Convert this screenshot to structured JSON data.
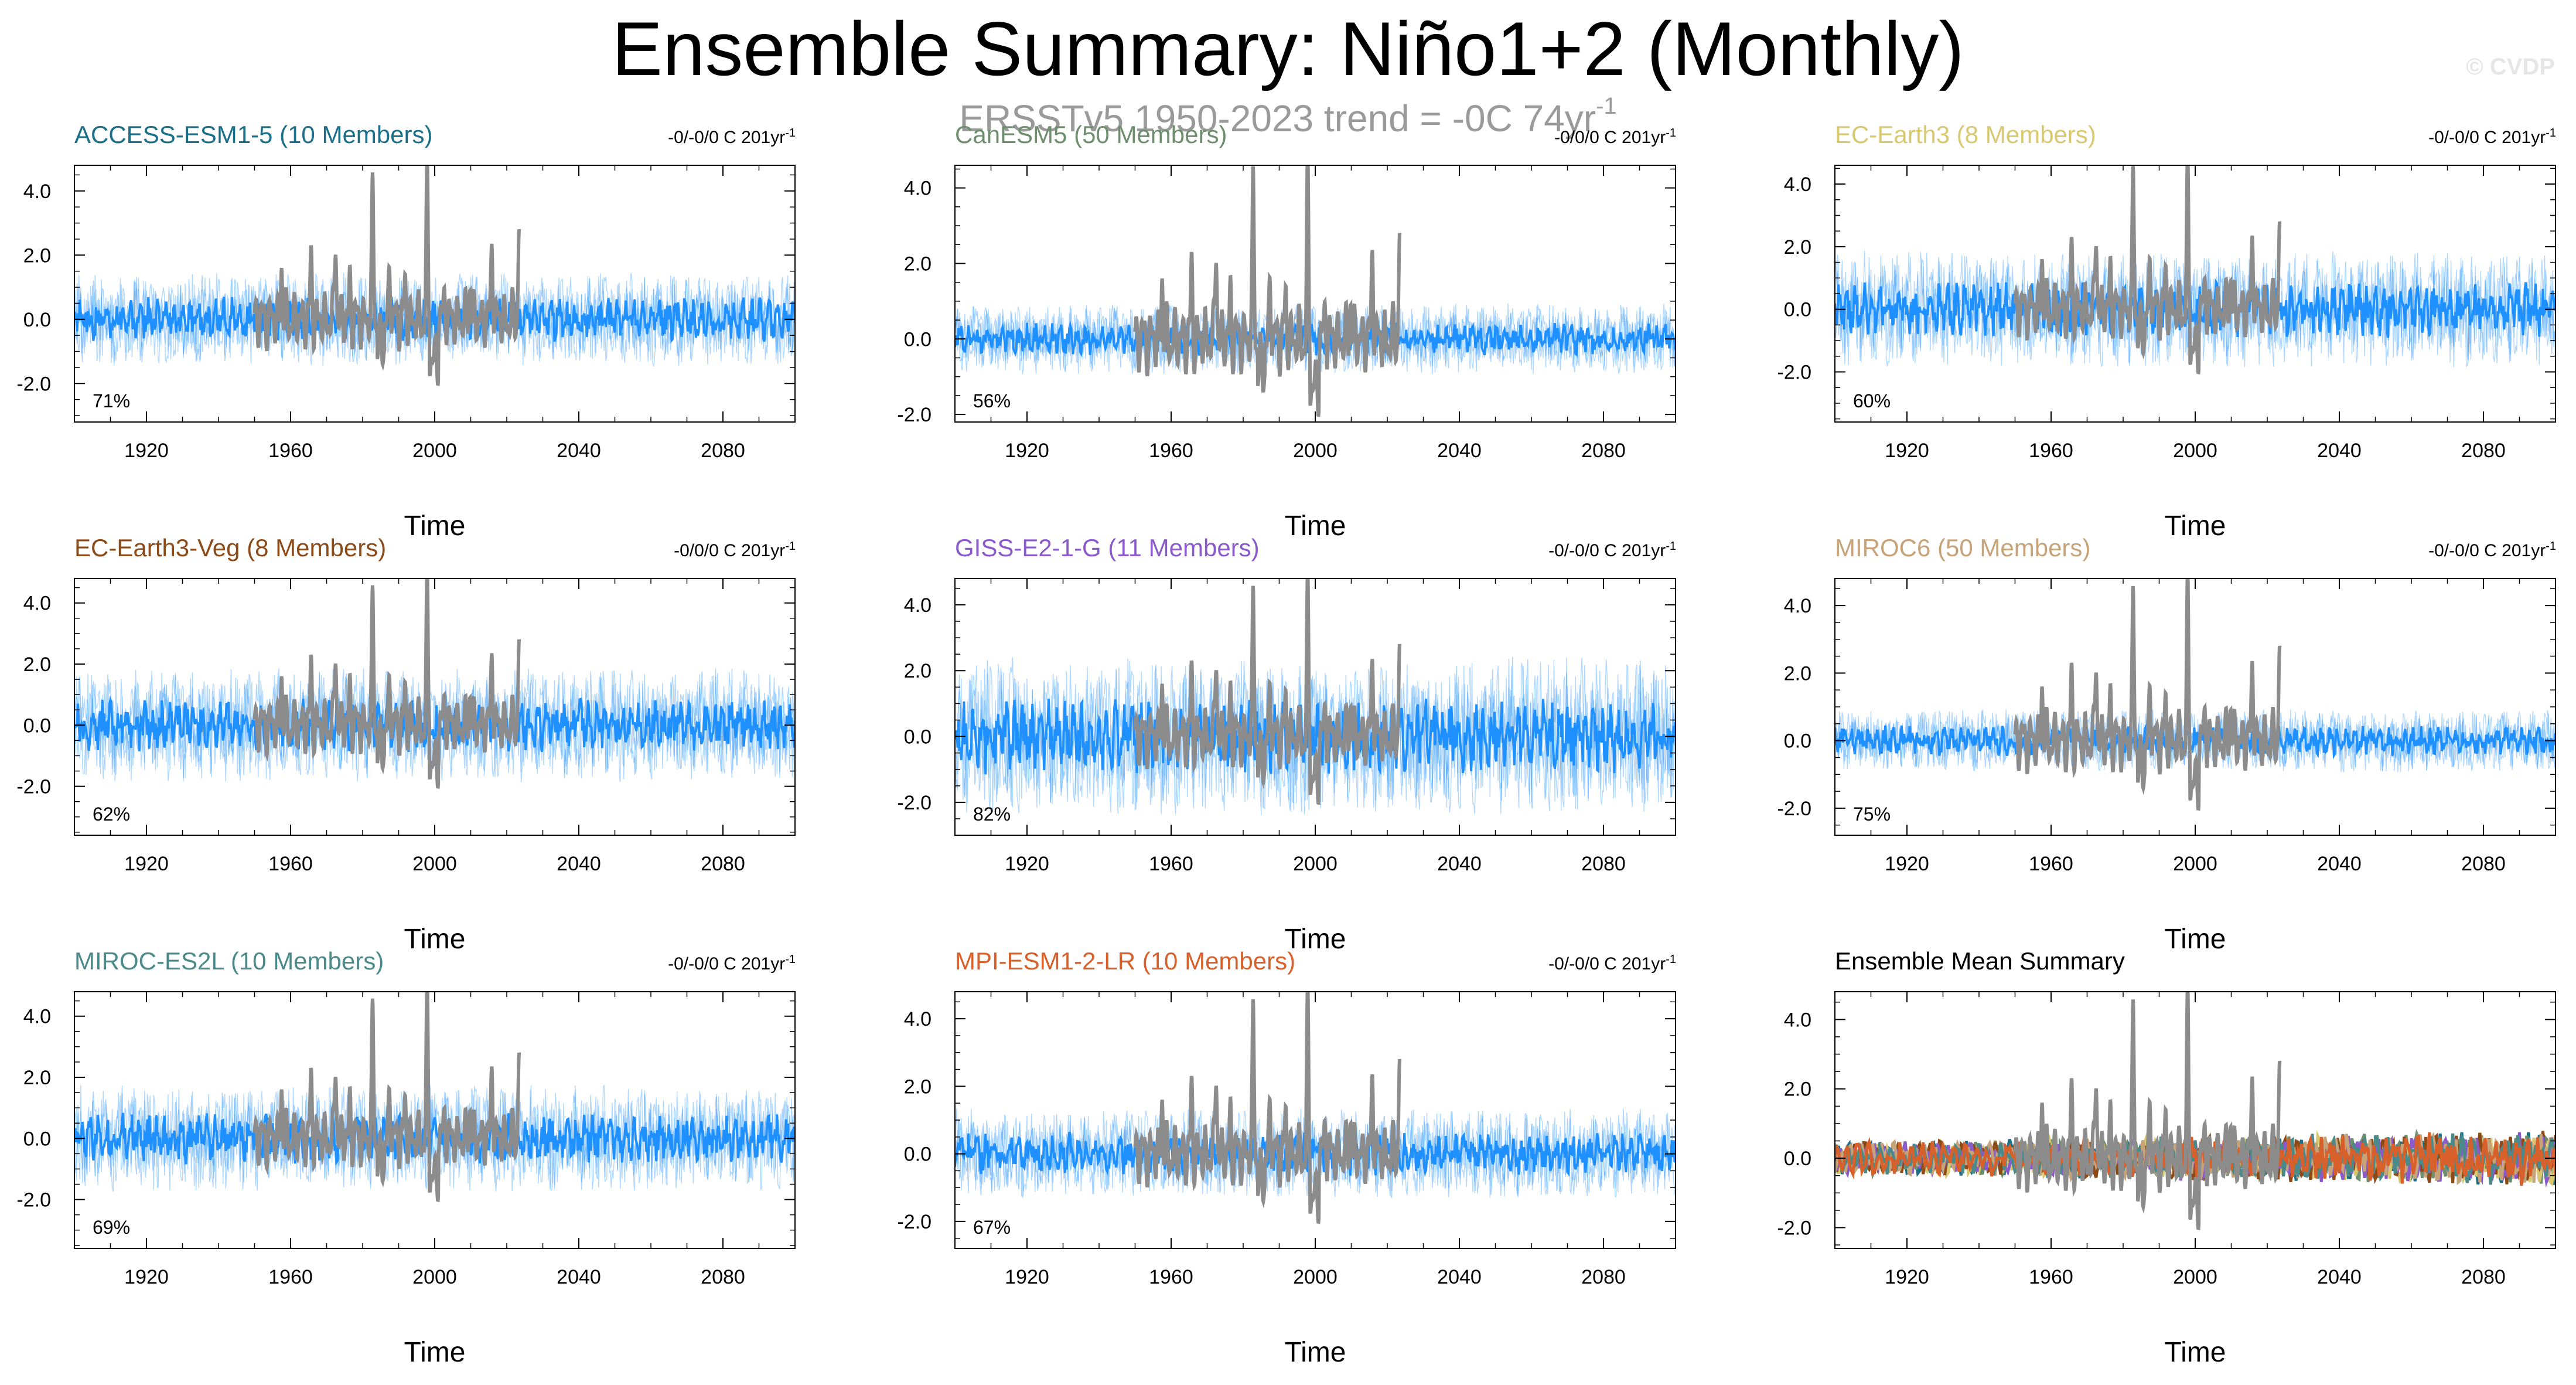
{
  "title": "Ensemble Summary: Niño1+2 (Monthly)",
  "subtitle": "ERSSTv5 1950-2023 trend = -0C 74yr",
  "subtitle_sup": "-1",
  "watermark": "© CVDP",
  "observed_color": "#8c8c8c",
  "ensemble_color": "#1e90ff",
  "chart_data": [
    {
      "type": "line",
      "title": "ACCESS-ESM1-5 (10 Members)",
      "title_color": "#1b6f88",
      "trend": "-0/-0/0 C 201yr",
      "trend_sup": "-1",
      "percent": "71%",
      "xlabel": "Time",
      "xticks": [
        "1920",
        "1960",
        "2000",
        "2040",
        "2080"
      ],
      "yticks": [
        "4.0",
        "2.0",
        "0.0",
        "-2.0"
      ],
      "xlim": [
        1900,
        2100
      ],
      "ylim": [
        -3.2,
        4.8
      ],
      "amp": 0.55
    },
    {
      "type": "line",
      "title": "CanESM5 (50 Members)",
      "title_color": "#6e8f6e",
      "trend": "-0/0/0 C 201yr",
      "trend_sup": "-1",
      "percent": "56%",
      "xlabel": "Time",
      "xticks": [
        "1920",
        "1960",
        "2000",
        "2040",
        "2080"
      ],
      "yticks": [
        "4.0",
        "2.0",
        "0.0",
        "-2.0"
      ],
      "xlim": [
        1900,
        2100
      ],
      "ylim": [
        -2.2,
        4.6
      ],
      "amp": 0.35
    },
    {
      "type": "line",
      "title": "EC-Earth3 (8 Members)",
      "title_color": "#d8c870",
      "trend": "-0/-0/0 C 201yr",
      "trend_sup": "-1",
      "percent": "60%",
      "xlabel": "Time",
      "xticks": [
        "1920",
        "1960",
        "2000",
        "2040",
        "2080"
      ],
      "yticks": [
        "4.0",
        "2.0",
        "0.0",
        "-2.0"
      ],
      "xlim": [
        1900,
        2100
      ],
      "ylim": [
        -3.6,
        4.6
      ],
      "amp": 0.7
    },
    {
      "type": "line",
      "title": "EC-Earth3-Veg (8 Members)",
      "title_color": "#8b4a18",
      "trend": "-0/0/0 C 201yr",
      "trend_sup": "-1",
      "percent": "62%",
      "xlabel": "Time",
      "xticks": [
        "1920",
        "1960",
        "2000",
        "2040",
        "2080"
      ],
      "yticks": [
        "4.0",
        "2.0",
        "0.0",
        "-2.0"
      ],
      "xlim": [
        1900,
        2100
      ],
      "ylim": [
        -3.6,
        4.8
      ],
      "amp": 0.7
    },
    {
      "type": "line",
      "title": "GISS-E2-1-G (11 Members)",
      "title_color": "#8a5acb",
      "trend": "-0/-0/0 C 201yr",
      "trend_sup": "-1",
      "percent": "82%",
      "xlabel": "Time",
      "xticks": [
        "1920",
        "1960",
        "2000",
        "2040",
        "2080"
      ],
      "yticks": [
        "4.0",
        "2.0",
        "0.0",
        "-2.0"
      ],
      "xlim": [
        1900,
        2100
      ],
      "ylim": [
        -3.0,
        4.8
      ],
      "amp": 0.9
    },
    {
      "type": "line",
      "title": "MIROC6 (50 Members)",
      "title_color": "#c7a37a",
      "trend": "-0/-0/0 C 201yr",
      "trend_sup": "-1",
      "percent": "75%",
      "xlabel": "Time",
      "xticks": [
        "1920",
        "1960",
        "2000",
        "2040",
        "2080"
      ],
      "yticks": [
        "4.0",
        "2.0",
        "0.0",
        "-2.0"
      ],
      "xlim": [
        1900,
        2100
      ],
      "ylim": [
        -2.8,
        4.8
      ],
      "amp": 0.35
    },
    {
      "type": "line",
      "title": "MIROC-ES2L (10 Members)",
      "title_color": "#4a8a8a",
      "trend": "-0/-0/0 C 201yr",
      "trend_sup": "-1",
      "percent": "69%",
      "xlabel": "Time",
      "xticks": [
        "1920",
        "1960",
        "2000",
        "2040",
        "2080"
      ],
      "yticks": [
        "4.0",
        "2.0",
        "0.0",
        "-2.0"
      ],
      "xlim": [
        1900,
        2100
      ],
      "ylim": [
        -3.6,
        4.8
      ],
      "amp": 0.65
    },
    {
      "type": "line",
      "title": "MPI-ESM1-2-LR (10 Members)",
      "title_color": "#d8602a",
      "trend": "-0/-0/0 C 201yr",
      "trend_sup": "-1",
      "percent": "67%",
      "xlabel": "Time",
      "xticks": [
        "1920",
        "1960",
        "2000",
        "2040",
        "2080"
      ],
      "yticks": [
        "4.0",
        "2.0",
        "0.0",
        "-2.0"
      ],
      "xlim": [
        1900,
        2100
      ],
      "ylim": [
        -2.8,
        4.8
      ],
      "amp": 0.5
    },
    {
      "type": "line",
      "title": "Ensemble Mean Summary",
      "title_color": "#000000",
      "trend": "",
      "trend_sup": "",
      "percent": "",
      "xlabel": "Time",
      "xticks": [
        "1920",
        "1960",
        "2000",
        "2040",
        "2080"
      ],
      "yticks": [
        "4.0",
        "2.0",
        "0.0",
        "-2.0"
      ],
      "xlim": [
        1900,
        2100
      ],
      "ylim": [
        -2.6,
        4.8
      ],
      "amp": 0.35,
      "series_colors": [
        "#1b6f88",
        "#6e8f6e",
        "#d8c870",
        "#8b4a18",
        "#8a5acb",
        "#c7a37a",
        "#4a8a8a",
        "#d8602a"
      ]
    }
  ]
}
